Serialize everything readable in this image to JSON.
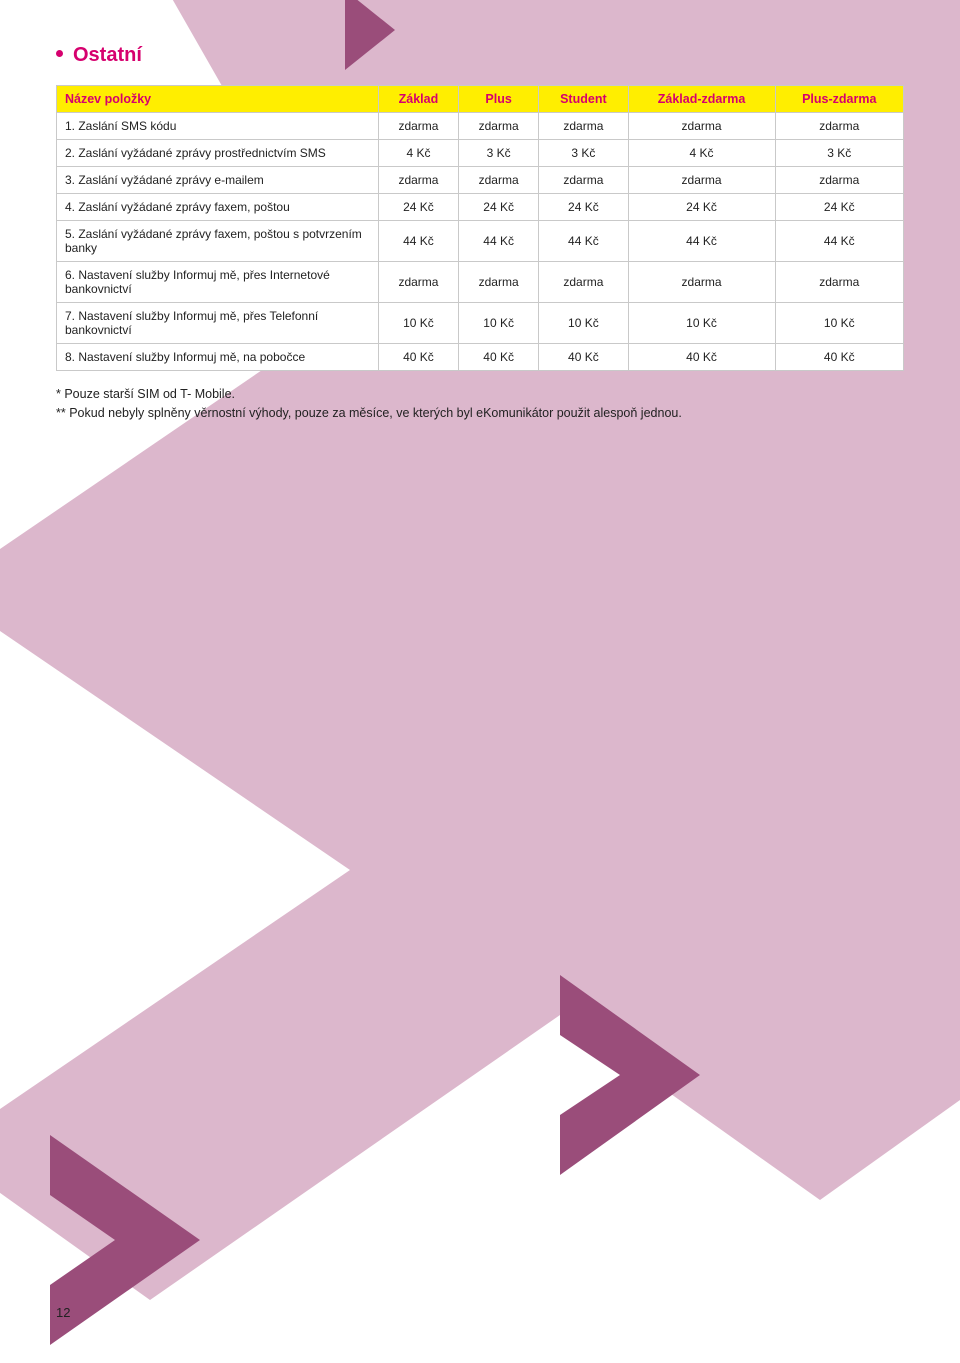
{
  "section": {
    "title": "Ostatní"
  },
  "table": {
    "columns": [
      "Název položky",
      "Základ",
      "Plus",
      "Student",
      "Základ-zdarma",
      "Plus-zdarma"
    ],
    "rows": [
      {
        "label": "1. Zaslání SMS kódu",
        "cells": [
          "zdarma",
          "zdarma",
          "zdarma",
          "zdarma",
          "zdarma"
        ]
      },
      {
        "label": "2. Zaslání vyžádané zprávy prostřednictvím SMS",
        "cells": [
          "4 Kč",
          "3 Kč",
          "3 Kč",
          "4 Kč",
          "3 Kč"
        ]
      },
      {
        "label": "3. Zaslání vyžádané zprávy e-mailem",
        "cells": [
          "zdarma",
          "zdarma",
          "zdarma",
          "zdarma",
          "zdarma"
        ]
      },
      {
        "label": "4. Zaslání vyžádané zprávy faxem, poštou",
        "cells": [
          "24 Kč",
          "24 Kč",
          "24 Kč",
          "24 Kč",
          "24 Kč"
        ]
      },
      {
        "label": "5. Zaslání vyžádané zprávy faxem, poštou s potvrzením banky",
        "cells": [
          "44 Kč",
          "44 Kč",
          "44 Kč",
          "44 Kč",
          "44 Kč"
        ]
      },
      {
        "label": "6. Nastavení služby Informuj mě, přes Internetové bankovnictví",
        "cells": [
          "zdarma",
          "zdarma",
          "zdarma",
          "zdarma",
          "zdarma"
        ]
      },
      {
        "label": "7. Nastavení služby Informuj mě, přes Telefonní bankovnictví",
        "cells": [
          "10 Kč",
          "10 Kč",
          "10 Kč",
          "10 Kč",
          "10 Kč"
        ]
      },
      {
        "label": "8. Nastavení služby Informuj mě, na pobočce",
        "cells": [
          "40 Kč",
          "40 Kč",
          "40 Kč",
          "40 Kč",
          "40 Kč"
        ]
      }
    ],
    "header_bg": "#ffee00",
    "header_text_color": "#d6006e",
    "border_color": "#c9c9c9",
    "cell_bg": "#ffffff",
    "font_size": 12
  },
  "footnotes": {
    "line1": "* Pouze starší SIM od T- Mobile.",
    "line2": "** Pokud nebyly splněny věrnostní výhody, pouze za měsíce, ve kterých byl eKomunikátor použit alespoň jednou."
  },
  "page_number": "12",
  "bg": {
    "shape_color": "#dcb7cc",
    "accent_color": "#9a4d7a",
    "page_bg": "#ffffff"
  }
}
